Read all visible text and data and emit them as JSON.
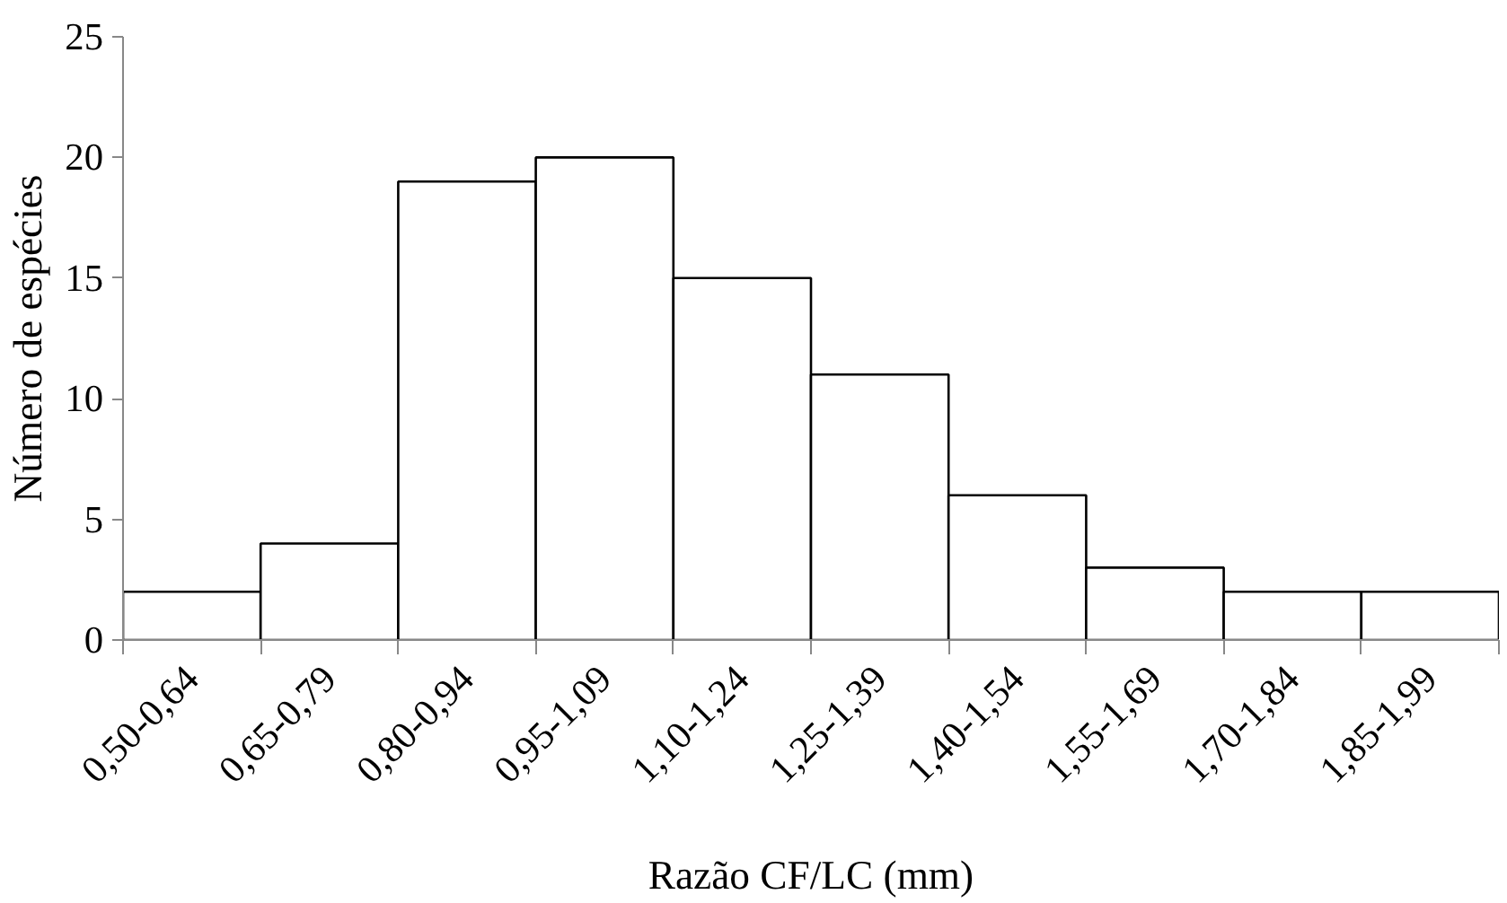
{
  "chart_data": {
    "type": "bar",
    "xlabel": "Razão CF/LC (mm)",
    "ylabel": "Número de espécies",
    "categories": [
      "0,50-0,64",
      "0,65-0,79",
      "0,80-0,94",
      "0,95-1,09",
      "1,10-1,24",
      "1,25-1,39",
      "1,40-1,54",
      "1,55-1,69",
      "1,70-1,84",
      "1,85-1,99"
    ],
    "values": [
      2,
      4,
      19,
      20,
      15,
      11,
      6,
      3,
      2,
      2
    ],
    "color": "#ffffff",
    "ylim": [
      0,
      25
    ],
    "yticks": [
      0,
      5,
      10,
      15,
      20,
      25
    ],
    "grid": false
  }
}
